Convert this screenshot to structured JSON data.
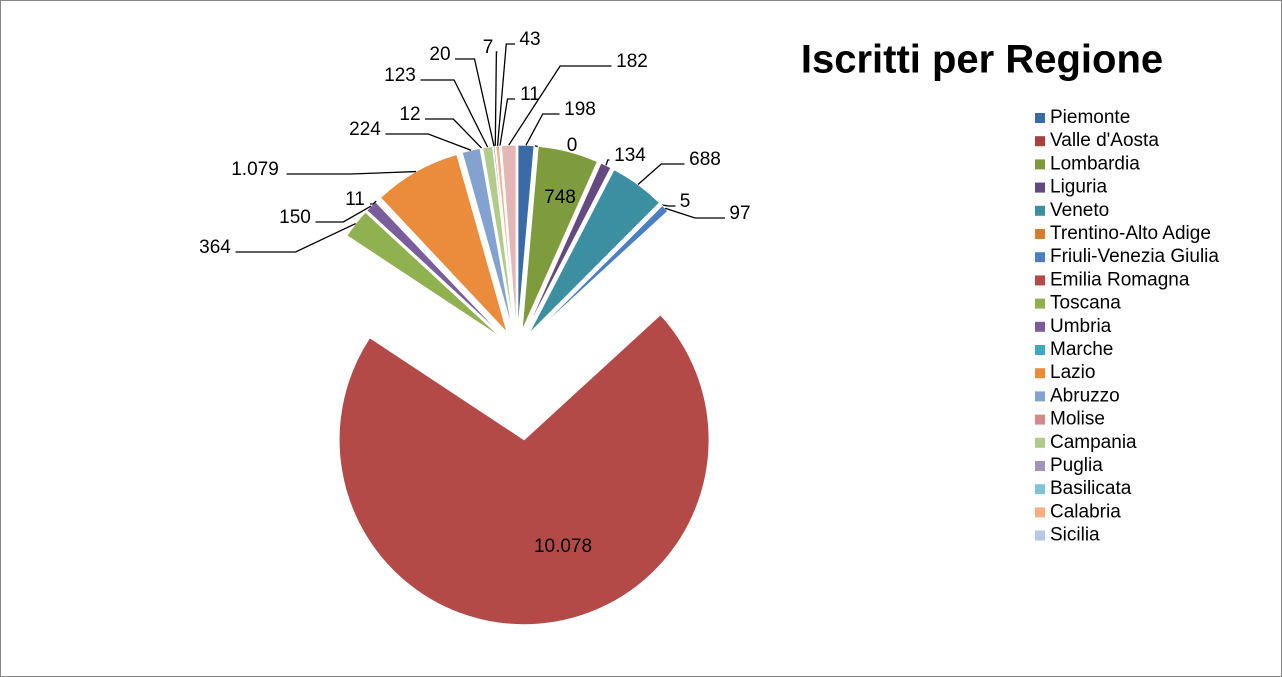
{
  "chart_data": {
    "type": "pie",
    "title": "Iscritti per Regione",
    "categories": [
      "Piemonte",
      "Valle d'Aosta",
      "Lombardia",
      "Liguria",
      "Veneto",
      "Trentino-Alto Adige",
      "Friuli-Venezia Giulia",
      "Emilia Romagna",
      "Toscana",
      "Umbria",
      "Marche",
      "Lazio",
      "Abruzzo",
      "Molise",
      "Campania",
      "Puglia",
      "Basilicata",
      "Calabria",
      "Sicilia",
      null
    ],
    "values": [
      198,
      0,
      748,
      134,
      688,
      5,
      97,
      10078,
      364,
      150,
      11,
      1079,
      224,
      12,
      123,
      20,
      7,
      43,
      11,
      182
    ],
    "value_labels": [
      "198",
      "0",
      "748",
      "134",
      "688",
      "5",
      "97",
      "10.078",
      "364",
      "150",
      "11",
      "1.079",
      "224",
      "12",
      "123",
      "20",
      "7",
      "43",
      "11",
      "182"
    ],
    "colors": [
      "#3A6BA6",
      "#A6413F",
      "#7E9B3E",
      "#644A80",
      "#3B8FA0",
      "#D67C2F",
      "#4B7FC1",
      "#B34A47",
      "#8FB150",
      "#7A5E9C",
      "#3FA8C0",
      "#EB8C3C",
      "#84A2D0",
      "#D38A88",
      "#B0CB8A",
      "#A393BC",
      "#7FC3D6",
      "#F8AC7F",
      "#B8C7E2",
      "#E2B7B6"
    ],
    "legend": "right"
  }
}
